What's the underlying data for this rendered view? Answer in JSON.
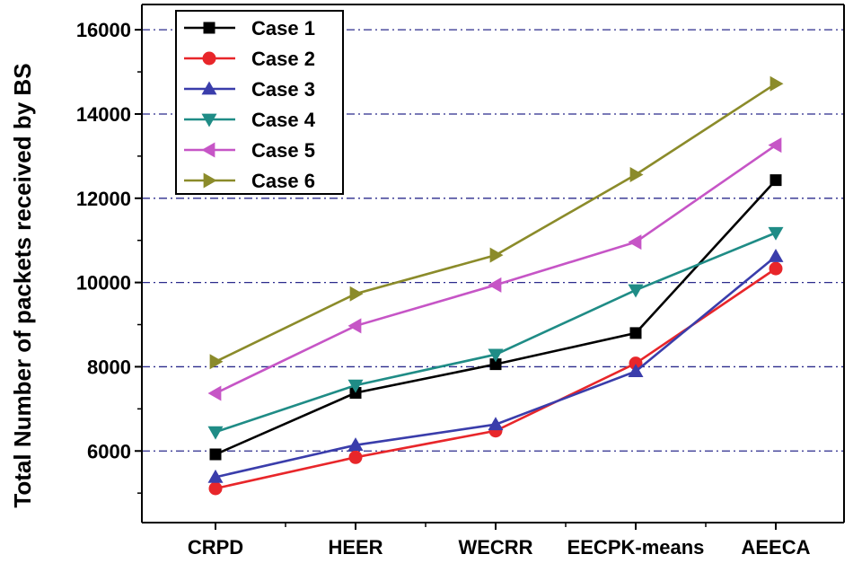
{
  "chart_data": {
    "type": "line",
    "title": "",
    "xlabel": "",
    "ylabel": "Total Number of packets received by BS",
    "categories": [
      "CRPD",
      "HEER",
      "WECRR",
      "EECPK-means",
      "AEECA"
    ],
    "ylim": [
      4300,
      16600
    ],
    "yticks": [
      6000,
      8000,
      10000,
      12000,
      14000,
      16000
    ],
    "grid": "horizontal dash-dot",
    "legend": "top-left",
    "series": [
      {
        "name": "Case 1",
        "color": "#000000",
        "marker": "square",
        "values": [
          5920,
          7380,
          8060,
          8800,
          12430
        ]
      },
      {
        "name": "Case 2",
        "color": "#e8262a",
        "marker": "circle",
        "values": [
          5110,
          5850,
          6480,
          8080,
          10330
        ]
      },
      {
        "name": "Case 3",
        "color": "#3a3dab",
        "marker": "triangle-up",
        "values": [
          5380,
          6140,
          6630,
          7890,
          10620
        ]
      },
      {
        "name": "Case 4",
        "color": "#1f8c86",
        "marker": "triangle-down",
        "values": [
          6450,
          7560,
          8290,
          9820,
          11180
        ]
      },
      {
        "name": "Case 5",
        "color": "#c655c6",
        "marker": "triangle-left",
        "values": [
          7370,
          8970,
          9940,
          10960,
          13260
        ]
      },
      {
        "name": "Case 6",
        "color": "#8b8b2a",
        "marker": "triangle-right",
        "values": [
          8120,
          9730,
          10650,
          12560,
          14720
        ]
      }
    ]
  }
}
